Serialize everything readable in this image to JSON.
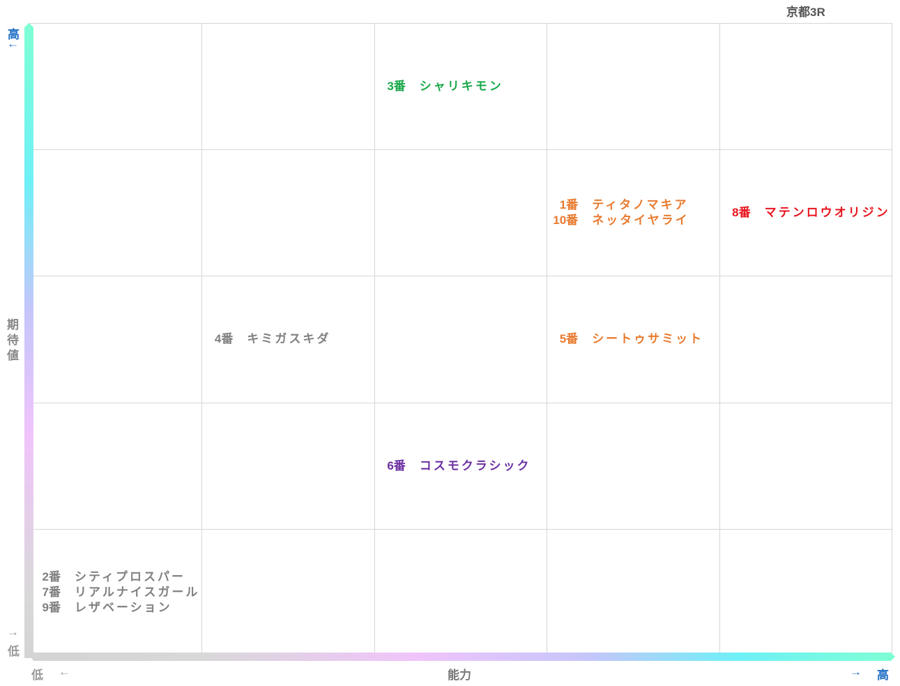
{
  "title": "京都3R",
  "y_axis": {
    "label": "期待値",
    "high": "高",
    "high_arrow": "←",
    "low": "低",
    "low_arrow": "→"
  },
  "x_axis": {
    "label": "能力",
    "low": "低",
    "low_arrow": "←",
    "high": "高",
    "high_arrow": "→"
  },
  "colors": {
    "green": "#1aa84a",
    "orange": "#e87a2e",
    "red": "#e8141e",
    "gray": "#808080",
    "purple": "#6b2fa0",
    "axis_accent": "#1f6fc4"
  },
  "grid": {
    "columns": 5,
    "rows": 5
  },
  "placements": [
    {
      "ability_col": 3,
      "expectation_row": 5,
      "color": "#1aa84a",
      "horses": [
        {
          "num": "3番",
          "name": "シャリキモン"
        }
      ]
    },
    {
      "ability_col": 4,
      "expectation_row": 4,
      "color": "#e87a2e",
      "horses": [
        {
          "num": "1番",
          "name": "ティタノマキア"
        },
        {
          "num": "10番",
          "name": "ネッタイヤライ"
        }
      ]
    },
    {
      "ability_col": 5,
      "expectation_row": 4,
      "color": "#e8141e",
      "horses": [
        {
          "num": "8番",
          "name": "マテンロウオリジン"
        }
      ]
    },
    {
      "ability_col": 2,
      "expectation_row": 3,
      "color": "#808080",
      "horses": [
        {
          "num": "4番",
          "name": "キミガスキダ"
        }
      ]
    },
    {
      "ability_col": 4,
      "expectation_row": 3,
      "color": "#e87a2e",
      "horses": [
        {
          "num": "5番",
          "name": "シートゥサミット"
        }
      ]
    },
    {
      "ability_col": 3,
      "expectation_row": 2,
      "color": "#6b2fa0",
      "horses": [
        {
          "num": "6番",
          "name": "コスモクラシック"
        }
      ]
    },
    {
      "ability_col": 1,
      "expectation_row": 1,
      "color": "#808080",
      "horses": [
        {
          "num": "2番",
          "name": "シティプロスパー"
        },
        {
          "num": "7番",
          "name": "リアルナイスガール"
        },
        {
          "num": "9番",
          "name": "レザベーション"
        }
      ]
    }
  ]
}
